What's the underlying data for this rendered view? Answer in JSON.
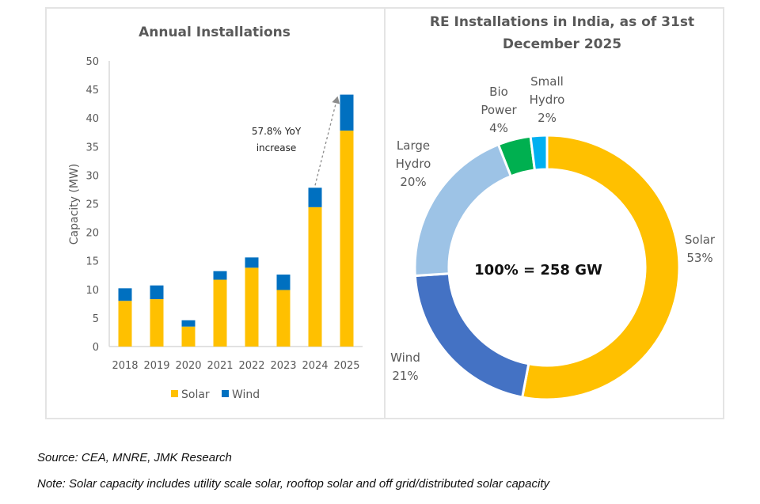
{
  "chart_data": [
    {
      "type": "bar",
      "stacked": true,
      "title": "Annual Installations",
      "xlabel": "",
      "ylabel": "Capacity (MW)",
      "ylim": [
        0,
        50
      ],
      "yticks": [
        0,
        5,
        10,
        15,
        20,
        25,
        30,
        35,
        40,
        45,
        50
      ],
      "categories": [
        "2018",
        "2019",
        "2020",
        "2021",
        "2022",
        "2023",
        "2024",
        "2025"
      ],
      "series": [
        {
          "name": "Solar",
          "color": "#FFC000",
          "values": [
            8.0,
            8.3,
            3.5,
            11.7,
            13.8,
            9.9,
            24.4,
            37.8
          ]
        },
        {
          "name": "Wind",
          "color": "#0070C0",
          "values": [
            2.2,
            2.4,
            1.1,
            1.5,
            1.8,
            2.7,
            3.4,
            6.3
          ]
        }
      ],
      "legend": {
        "position": "bottom",
        "entries": [
          "Solar",
          "Wind"
        ]
      },
      "annotation": {
        "lines": [
          "57.8% YoY",
          "increase"
        ],
        "from": "2024",
        "to": "2025"
      },
      "grid": false
    },
    {
      "type": "pie",
      "donut": true,
      "title_lines": [
        "RE Installations in India, as of 31st",
        "December 2025"
      ],
      "center_label": "100% = 258 GW",
      "slices": [
        {
          "name": "Solar",
          "value": 53,
          "label_lines": [
            "Solar",
            "53%"
          ],
          "color": "#FFC000"
        },
        {
          "name": "Wind",
          "value": 21,
          "label_lines": [
            "Wind",
            "21%"
          ],
          "color": "#4472C4"
        },
        {
          "name": "Large Hydro",
          "value": 20,
          "label_lines": [
            "Large",
            "Hydro",
            "20%"
          ],
          "color": "#9DC3E6"
        },
        {
          "name": "Bio Power",
          "value": 4,
          "label_lines": [
            "Bio",
            "Power",
            "4%"
          ],
          "color": "#00B050"
        },
        {
          "name": "Small Hydro",
          "value": 2,
          "label_lines": [
            "Small",
            "Hydro",
            "2%"
          ],
          "color": "#00B0F0"
        }
      ]
    }
  ],
  "footer": {
    "source": "Source: CEA, MNRE, JMK Research",
    "note": "Note: Solar capacity includes utility scale solar, rooftop solar and off grid/distributed solar capacity"
  }
}
